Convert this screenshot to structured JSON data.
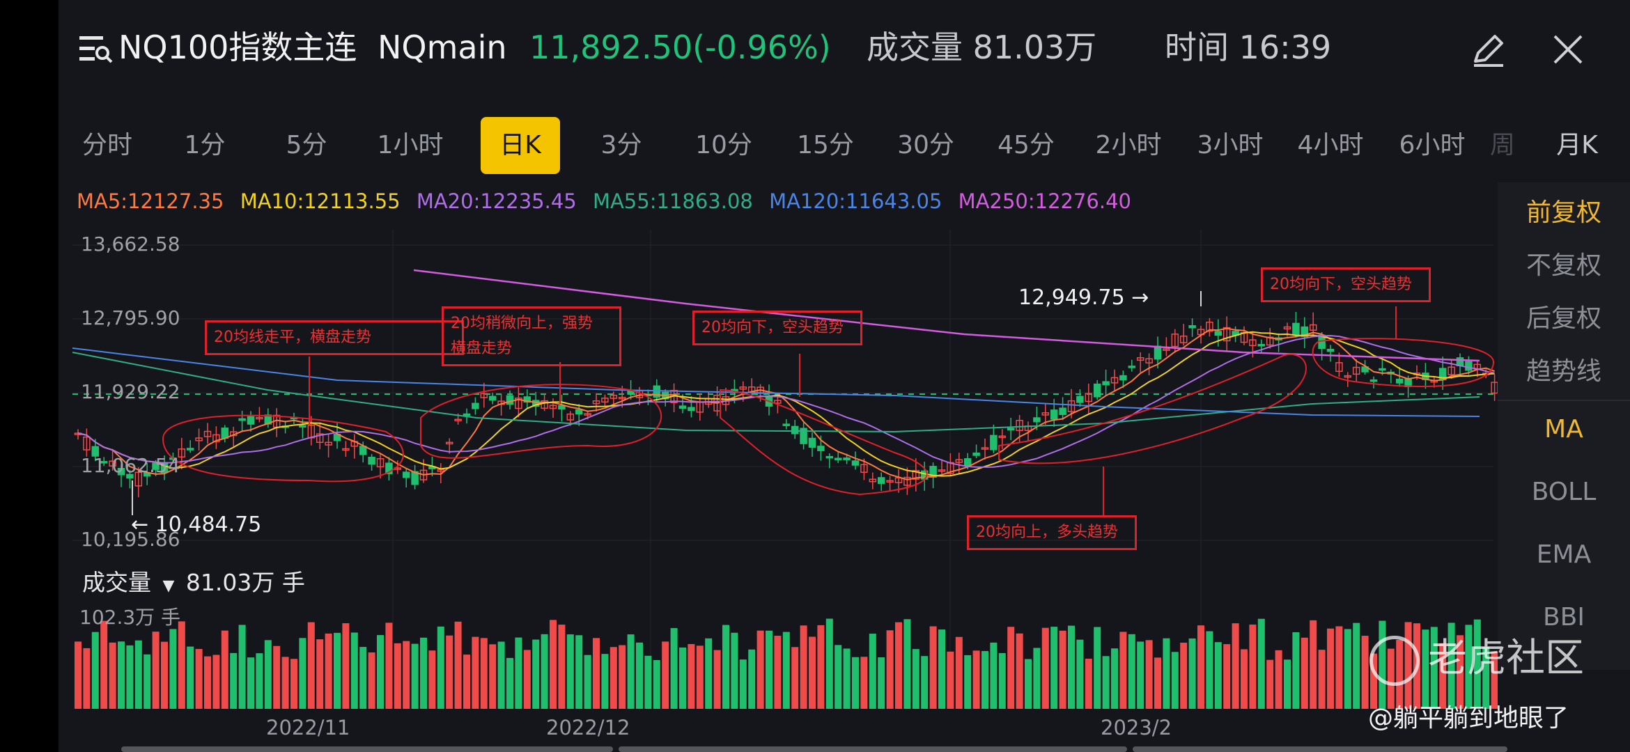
{
  "header": {
    "title": "NQ100指数主连",
    "symbol": "NQmain",
    "price": "11,892.50(-0.96%)",
    "volume_label": "成交量 81.03万",
    "time_label": "时间 16:39",
    "price_color": "#1fc37a"
  },
  "tabs": [
    {
      "label": "分时"
    },
    {
      "label": "1分"
    },
    {
      "label": "5分"
    },
    {
      "label": "1小时"
    },
    {
      "label": "日K",
      "active": true
    },
    {
      "label": "3分"
    },
    {
      "label": "10分"
    },
    {
      "label": "15分"
    },
    {
      "label": "30分"
    },
    {
      "label": "45分"
    },
    {
      "label": "2小时"
    },
    {
      "label": "3小时"
    },
    {
      "label": "4小时"
    },
    {
      "label": "6小时"
    },
    {
      "label": "周"
    },
    {
      "label": "月K"
    }
  ],
  "ma_legend": [
    {
      "label": "MA5:12127.35",
      "color": "#ff7a3c"
    },
    {
      "label": "MA10:12113.55",
      "color": "#f2d21b"
    },
    {
      "label": "MA20:12235.45",
      "color": "#b06ee8"
    },
    {
      "label": "MA55:11863.08",
      "color": "#2fae88"
    },
    {
      "label": "MA120:11643.05",
      "color": "#4a86e8"
    },
    {
      "label": "MA250:12276.40",
      "color": "#d45ce0"
    }
  ],
  "y_axis": [
    "13,662.58",
    "12,795.90",
    "11,929.22",
    "11,062.54",
    "10,195.86"
  ],
  "price_markers": {
    "high": "12,949.75 →",
    "low": "← 10,484.75"
  },
  "right_panel": {
    "adjust": [
      "前复权",
      "不复权",
      "后复权",
      "趋势线"
    ],
    "indicators": [
      "MA",
      "BOLL",
      "EMA",
      "BBI"
    ],
    "selected_adjust": "前复权",
    "selected_indicator": "MA"
  },
  "annotations": [
    "20均线走平，横盘走势",
    "20均稍微向上，强势\n横盘走势",
    "20均向下，空头趋势",
    "20均向下，空头趋势",
    "20均向上，多头趋势"
  ],
  "volume": {
    "label": "成交量",
    "value": "81.03万 手",
    "max": "102.3万 手"
  },
  "dates": [
    "2022/11",
    "2022/12",
    "2023/2"
  ],
  "watermark": {
    "brand": "老虎社区",
    "user": "@躺平躺到地眼了"
  },
  "chart_data": {
    "type": "candlestick",
    "ylim": [
      10195.86,
      13662.58
    ],
    "last_price": 11892.5,
    "high_marker": 12949.75,
    "low_marker": 10484.75
  },
  "colors": {
    "up": "#ef4b4b",
    "down": "#1fbf6e",
    "accent": "#f5c400"
  }
}
